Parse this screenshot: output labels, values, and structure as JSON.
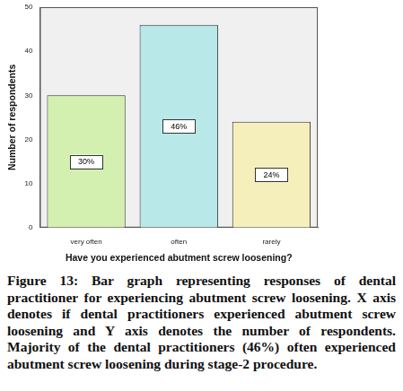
{
  "chart_data": {
    "type": "bar",
    "x_label": "Have you experienced abutment screw loosening?",
    "y_label": "Number of respondents",
    "categories": [
      "very often",
      "often",
      "rarely"
    ],
    "values": [
      30,
      46,
      24
    ],
    "value_labels": [
      "30%",
      "46%",
      "24%"
    ],
    "colors": [
      "#d3f0b0",
      "#b8e8e8",
      "#f5f0bb"
    ],
    "ylim": [
      0,
      50
    ],
    "yticks": [
      0,
      10,
      20,
      30,
      40,
      50
    ],
    "grid": false,
    "data_labels": true,
    "caption": "Figure 13: Bar graph representing responses of dental practitioner for experiencing abutment screw loosening. X axis denotes if dental practitioners experienced abutment screw loosening and Y axis denotes the number of respondents. Majority of the dental practitioners (46%) often experienced abutment screw loosening during stage-2 procedure."
  }
}
